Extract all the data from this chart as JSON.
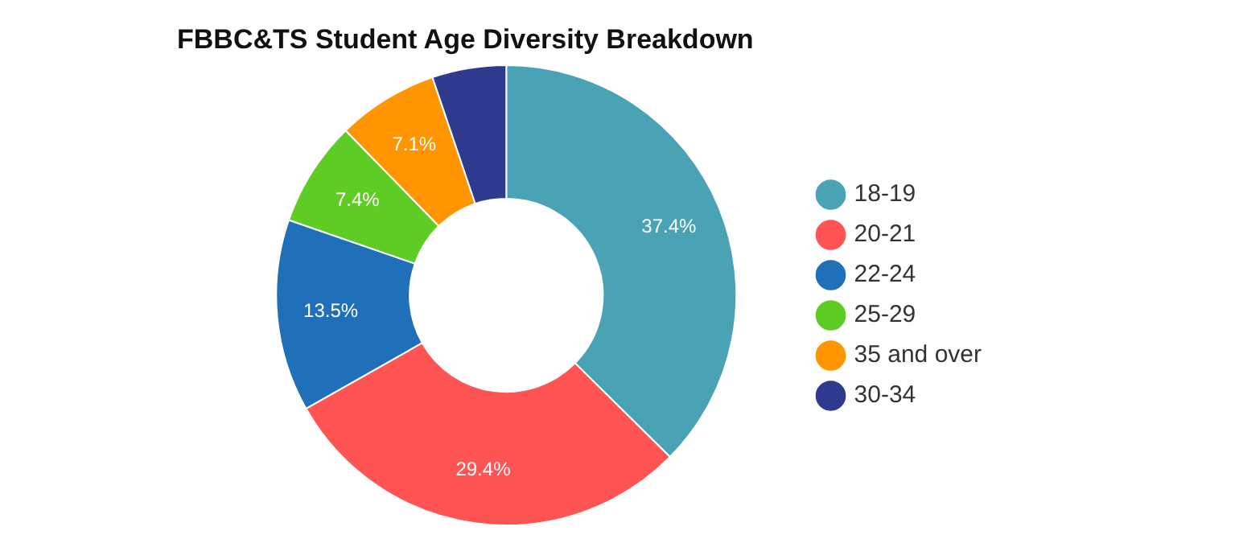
{
  "chart_data": {
    "type": "donut",
    "title": "FBBC&TS Student Age Diversity Breakdown",
    "categories": [
      "18-19",
      "20-21",
      "22-24",
      "25-29",
      "35 and over",
      "30-34"
    ],
    "values": [
      37.4,
      29.4,
      13.5,
      7.4,
      7.1,
      5.2
    ],
    "colors": [
      "#4aa3b5",
      "#fe5454",
      "#1f70b8",
      "#5fcc25",
      "#ff9500",
      "#2d3a8e"
    ],
    "value_labels": [
      "37.4%",
      "29.4%",
      "13.5%",
      "7.4%",
      "7.1%",
      null
    ],
    "legend": "right"
  }
}
